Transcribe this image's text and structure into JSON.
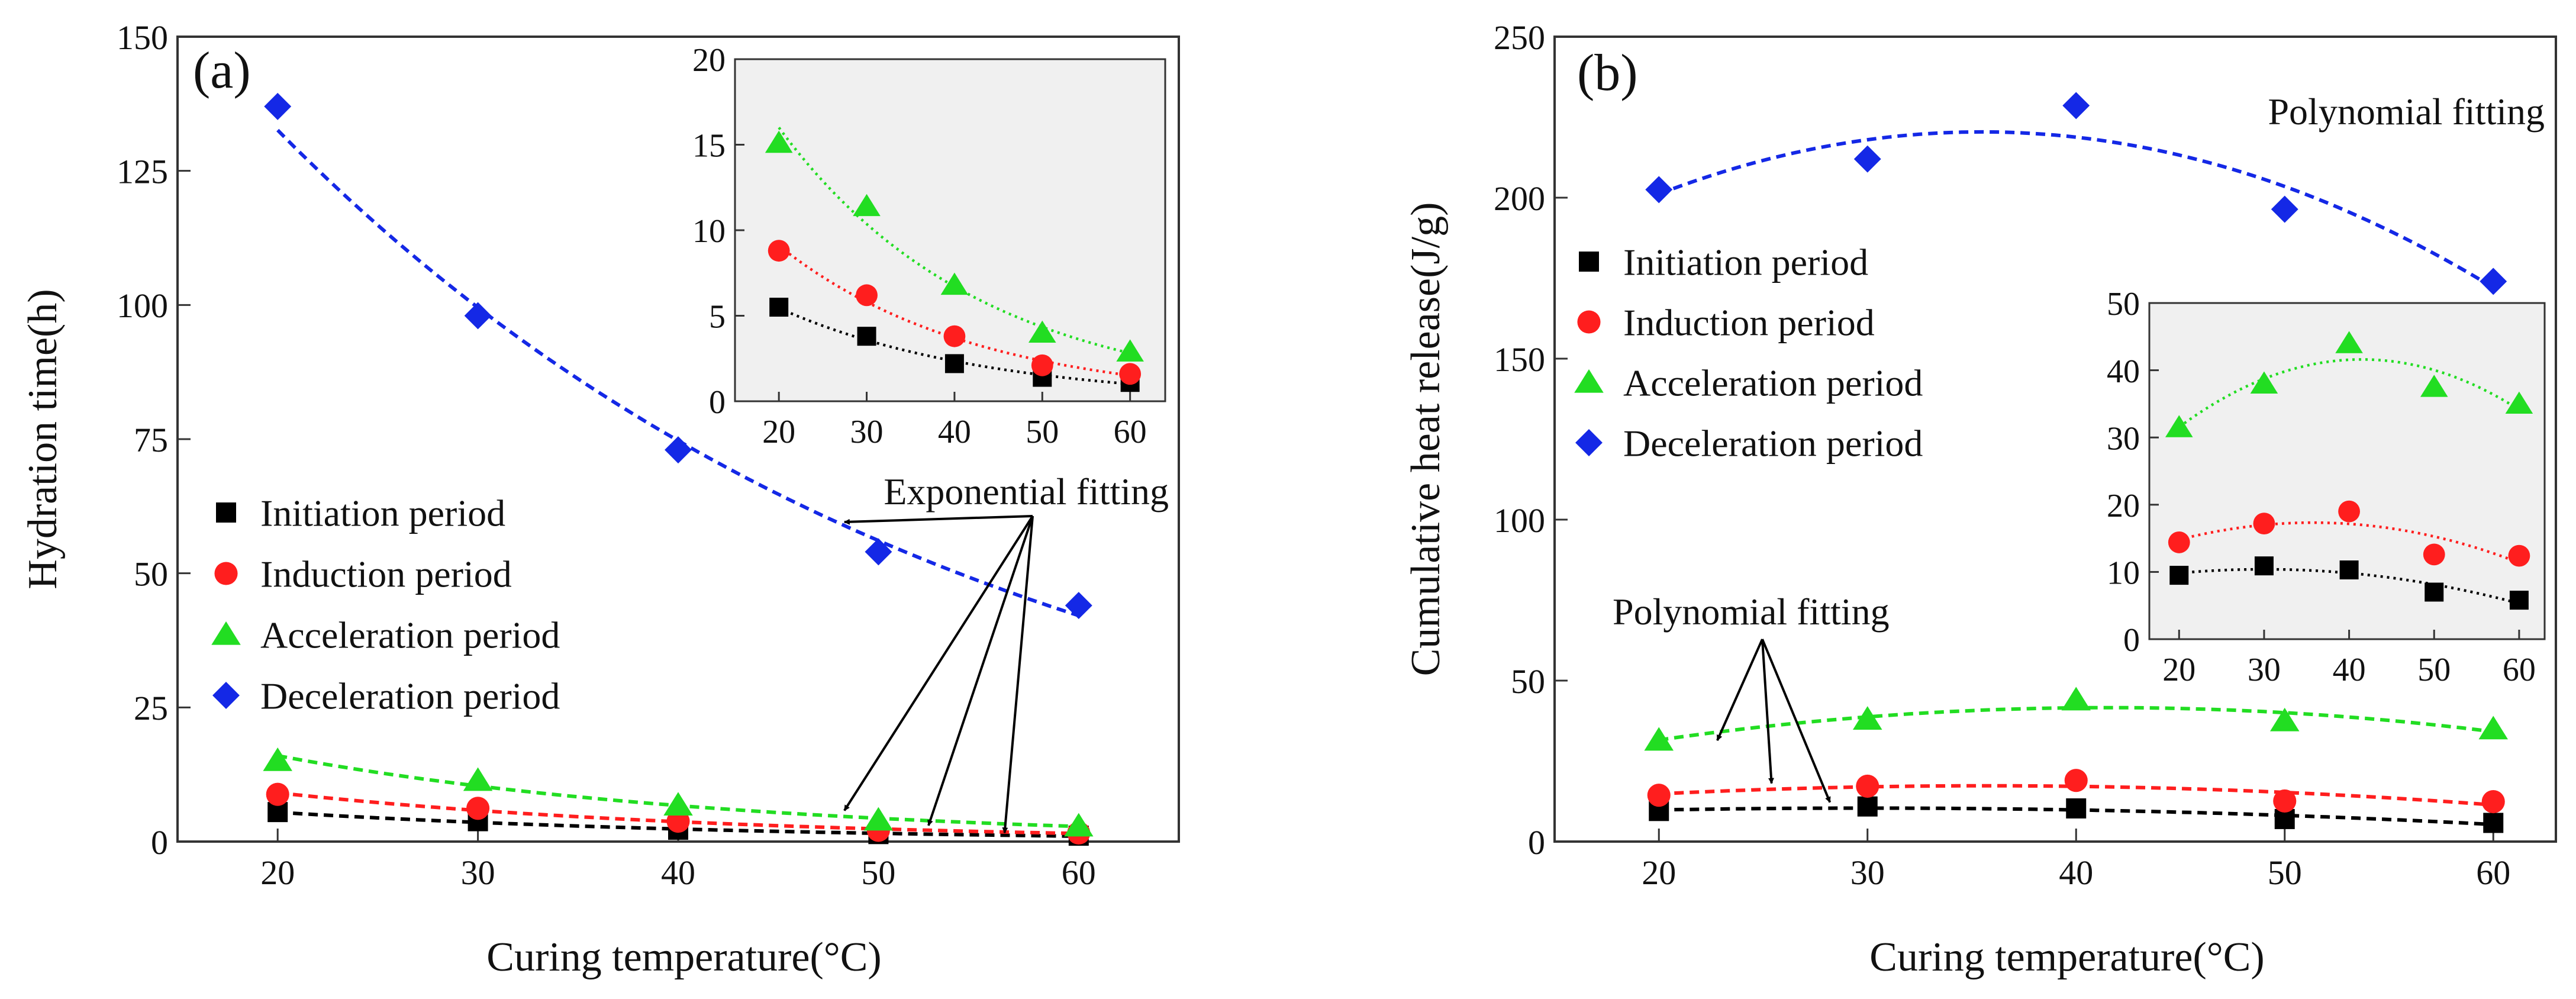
{
  "colors": {
    "initiation": "#000000",
    "induction": "#ff1e1e",
    "acceleration": "#22dd22",
    "deceleration": "#1428e6",
    "inset_background": "#f0f0f0",
    "axis": "#333333"
  },
  "chart_data": [
    {
      "type": "scatter",
      "panel_label": "(a)",
      "xlabel": "Curing temperature(°C)",
      "ylabel": "Hydration time(h)",
      "xlim": [
        15,
        65
      ],
      "ylim": [
        0,
        150
      ],
      "xticks": [
        20,
        30,
        40,
        50,
        60
      ],
      "yticks": [
        0,
        25,
        50,
        75,
        100,
        125,
        150
      ],
      "x": [
        20,
        30,
        40,
        50,
        60
      ],
      "series": [
        {
          "name": "Initiation period",
          "key": "initiation",
          "marker": "square",
          "values": [
            5.5,
            3.8,
            2.2,
            1.4,
            1.1
          ]
        },
        {
          "name": "Induction period",
          "key": "induction",
          "marker": "circle",
          "values": [
            8.8,
            6.2,
            3.8,
            2.1,
            1.6
          ]
        },
        {
          "name": "Acceleration period",
          "key": "acceleration",
          "marker": "triangle",
          "values": [
            15.1,
            11.4,
            6.8,
            4.0,
            2.9
          ]
        },
        {
          "name": "Deceleration period",
          "key": "deceleration",
          "marker": "diamond",
          "values": [
            137,
            98,
            73,
            54,
            44
          ]
        }
      ],
      "fit_type": "exponential",
      "annotation": "Exponential fitting",
      "legend_position": "lower-left",
      "grid": false,
      "inset": {
        "xlim": [
          15,
          64
        ],
        "ylim": [
          0,
          20
        ],
        "xticks": [
          20,
          30,
          40,
          50,
          60
        ],
        "yticks": [
          0,
          5,
          10,
          15,
          20
        ],
        "series_keys": [
          "initiation",
          "induction",
          "acceleration"
        ]
      }
    },
    {
      "type": "scatter",
      "panel_label": "(b)",
      "xlabel": "Curing temperature(°C)",
      "ylabel": "Cumulative heat release(J/g)",
      "xlim": [
        15,
        63
      ],
      "ylim": [
        0,
        250
      ],
      "xticks": [
        20,
        30,
        40,
        50,
        60
      ],
      "yticks": [
        0,
        50,
        100,
        150,
        200,
        250
      ],
      "x": [
        20,
        30,
        40,
        50,
        60
      ],
      "series": [
        {
          "name": "Initiation period",
          "key": "initiation",
          "marker": "square",
          "values": [
            9.5,
            10.9,
            10.3,
            7.0,
            5.8
          ]
        },
        {
          "name": "Induction period",
          "key": "induction",
          "marker": "circle",
          "values": [
            14.4,
            17.2,
            19.0,
            12.6,
            12.4
          ]
        },
        {
          "name": "Acceleration period",
          "key": "acceleration",
          "marker": "triangle",
          "values": [
            31.5,
            38.0,
            44.0,
            37.5,
            35.0
          ]
        },
        {
          "name": "Deceleration period",
          "key": "deceleration",
          "marker": "diamond",
          "values": [
            202.5,
            212.0,
            228.6,
            196.4,
            174.0
          ]
        }
      ],
      "fit_type": "polynomial",
      "annotation_top": "Polynomial fitting",
      "annotation": "Polynomial fitting",
      "legend_position": "center-left",
      "grid": false,
      "inset": {
        "xlim": [
          16.5,
          63
        ],
        "ylim": [
          0,
          50
        ],
        "xticks": [
          20,
          30,
          40,
          50,
          60
        ],
        "yticks": [
          0,
          10,
          20,
          30,
          40,
          50
        ],
        "series_keys": [
          "initiation",
          "induction",
          "acceleration"
        ]
      }
    }
  ]
}
